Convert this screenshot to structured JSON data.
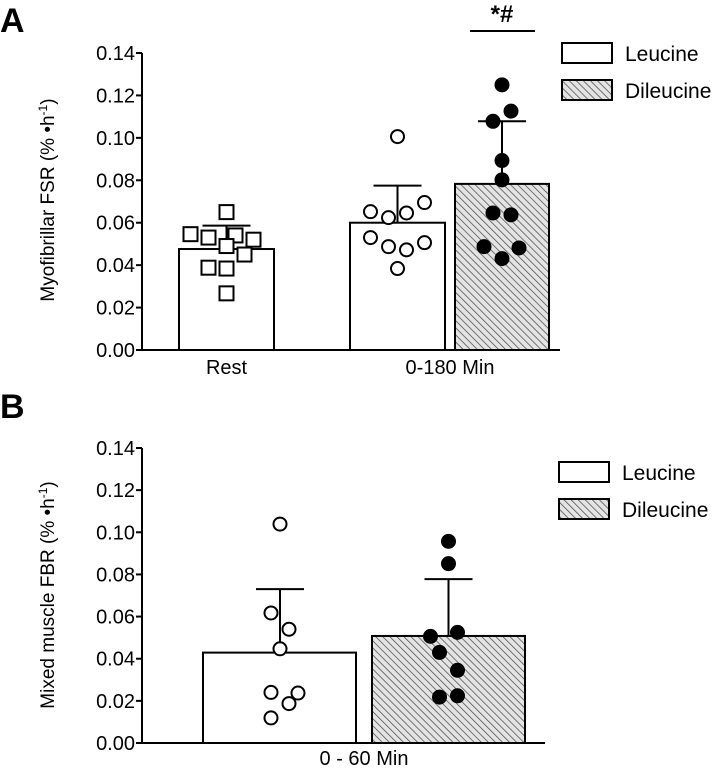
{
  "chart_data": [
    {
      "panel_label": "A",
      "type": "bar",
      "ylabel": "Myofibrillar FSR (% •h",
      "ylabel_sup": "-1",
      "ylabel_end": ")",
      "ylim": [
        0,
        0.14
      ],
      "yticks": [
        "0.00",
        "0.02",
        "0.04",
        "0.06",
        "0.08",
        "0.10",
        "0.12",
        "0.14"
      ],
      "categories": [
        "Rest",
        "0-180 Min"
      ],
      "legend": {
        "placement": "top-right",
        "entries": [
          "Leucine",
          "Dileucine"
        ]
      },
      "significance": {
        "category": "0-180 Min",
        "label": "*#"
      },
      "bars": [
        {
          "category": "Rest",
          "series": "Rest",
          "fill": "white",
          "marker": "open-square",
          "mean": 0.0476,
          "error": 0.0586,
          "points": [
            0.0546,
            0.053,
            0.065,
            0.054,
            0.052,
            0.049,
            0.045,
            0.0388,
            0.0384,
            0.0267
          ]
        },
        {
          "category": "0-180 Min",
          "series": "Leucine",
          "fill": "white",
          "marker": "open-circle",
          "mean": 0.06,
          "error": 0.0775,
          "points": [
            0.1006,
            0.0695,
            0.0652,
            0.0646,
            0.0624,
            0.053,
            0.0506,
            0.0487,
            0.0472,
            0.0384
          ]
        },
        {
          "category": "0-180 Min",
          "series": "Dileucine",
          "fill": "hatched",
          "marker": "filled-circle",
          "mean": 0.0783,
          "error": 0.1078,
          "points": [
            0.125,
            0.1126,
            0.1078,
            0.0893,
            0.0802,
            0.0646,
            0.0637,
            0.0487,
            0.0481,
            0.0431
          ]
        }
      ]
    },
    {
      "panel_label": "B",
      "type": "bar",
      "ylabel": "Mixed muscle FBR (% •h",
      "ylabel_sup": "-1",
      "ylabel_end": ")",
      "ylim": [
        0,
        0.14
      ],
      "yticks": [
        "0.00",
        "0.02",
        "0.04",
        "0.06",
        "0.08",
        "0.10",
        "0.12",
        "0.14"
      ],
      "categories": [
        "0 - 60 Min"
      ],
      "legend": {
        "placement": "top-right",
        "entries": [
          "Leucine",
          "Dileucine"
        ]
      },
      "bars": [
        {
          "category": "0 - 60 Min",
          "series": "Leucine",
          "fill": "white",
          "marker": "open-circle",
          "mean": 0.0429,
          "error": 0.073,
          "points": [
            0.1039,
            0.0617,
            0.054,
            0.0447,
            0.024,
            0.0237,
            0.0187,
            0.0119
          ]
        },
        {
          "category": "0 - 60 Min",
          "series": "Dileucine",
          "fill": "hatched",
          "marker": "filled-circle",
          "mean": 0.0508,
          "error": 0.0778,
          "points": [
            0.0957,
            0.0851,
            0.0506,
            0.0525,
            0.043,
            0.0345,
            0.0218,
            0.0224
          ]
        }
      ]
    }
  ],
  "colors": {
    "hatch_bg": "#e4e4e4",
    "hatch_line": "#555555",
    "ink": "#000000"
  }
}
